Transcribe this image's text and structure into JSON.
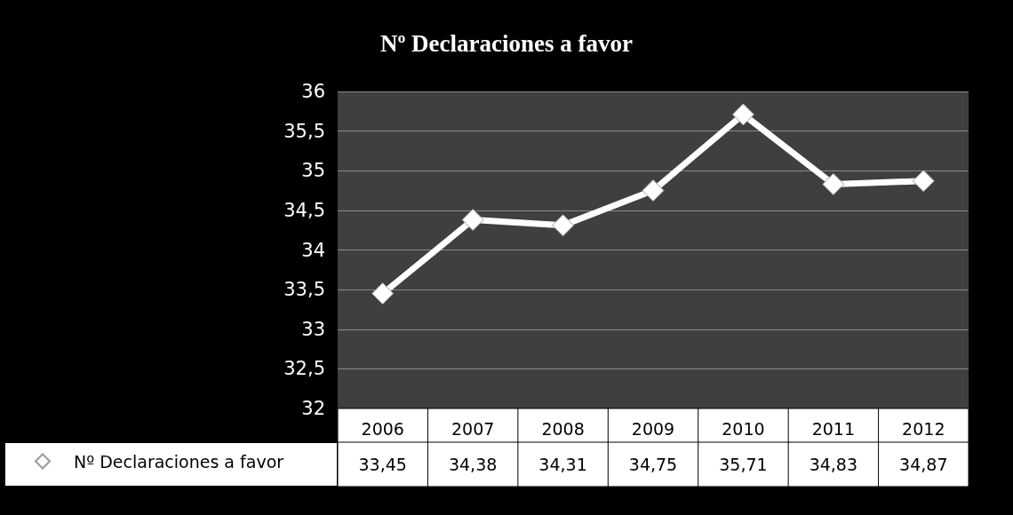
{
  "chart_data": {
    "type": "line",
    "title": "Nº Declaraciones a favor",
    "categories": [
      "2006",
      "2007",
      "2008",
      "2009",
      "2010",
      "2011",
      "2012"
    ],
    "series": [
      {
        "name": "Nº Declaraciones a favor",
        "color": "#ffffff",
        "values": [
          33.45,
          34.38,
          34.31,
          34.75,
          35.71,
          34.83,
          34.87
        ],
        "value_labels": [
          "33,45",
          "34,38",
          "34,31",
          "34,75",
          "35,71",
          "34,83",
          "34,87"
        ]
      }
    ],
    "ylim": [
      32,
      36
    ],
    "yticks": [
      32,
      {
        "value": 32.5,
        "label": "32,5"
      },
      33,
      {
        "value": 33.5,
        "label": "33,5"
      },
      34,
      {
        "value": 34.5,
        "label": "34,5"
      },
      35,
      {
        "value": 35.5,
        "label": "35,5"
      },
      36
    ],
    "grid": "y",
    "legend": "bottom left",
    "marker": "diamond",
    "line_style": "solid"
  }
}
